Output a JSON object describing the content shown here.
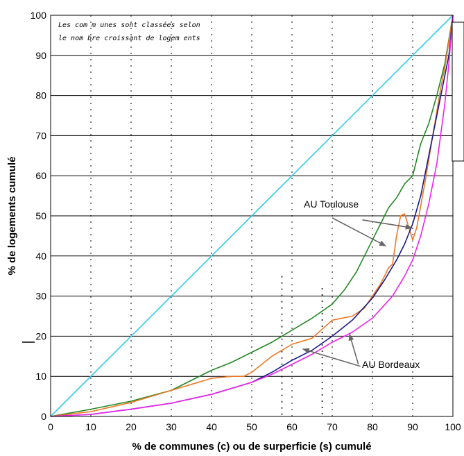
{
  "chart_data": {
    "type": "line",
    "title": "",
    "xlabel": "% de communes (c) ou de surperficie (s) cumulé",
    "ylabel": "% de logements cumulé",
    "xlim": [
      0,
      100
    ],
    "ylim": [
      0,
      100
    ],
    "x_ticks": [
      "0",
      "10",
      "20",
      "30",
      "40",
      "50",
      "60",
      "70",
      "80",
      "90",
      "100"
    ],
    "y_ticks": [
      "0",
      "10",
      "20",
      "30",
      "40",
      "50",
      "60",
      "70",
      "80",
      "90",
      "100"
    ],
    "grid": "horizontal solid, vertical dotted",
    "note_lines": [
      "Les com m unes sont classées selon",
      "le nom bre croissant de logem ents"
    ],
    "callouts": [
      {
        "text": "AU Toulouse"
      },
      {
        "text": "AU Bordeaux"
      }
    ],
    "series": [
      {
        "color": "#33ccee",
        "points": [
          [
            0,
            0
          ],
          [
            100,
            100
          ]
        ]
      },
      {
        "color": "#228822",
        "points": [
          [
            0,
            0
          ],
          [
            10,
            1.8
          ],
          [
            20,
            3.8
          ],
          [
            30,
            6.5
          ],
          [
            35,
            9
          ],
          [
            40,
            11.5
          ],
          [
            45,
            13.5
          ],
          [
            50,
            16
          ],
          [
            55,
            18.5
          ],
          [
            60,
            21.5
          ],
          [
            65,
            24.5
          ],
          [
            70,
            28
          ],
          [
            73,
            31.5
          ],
          [
            76,
            36
          ],
          [
            78,
            40
          ],
          [
            80,
            44
          ],
          [
            82,
            48
          ],
          [
            84,
            52
          ],
          [
            86,
            54.5
          ],
          [
            88,
            58
          ],
          [
            90,
            60
          ],
          [
            92,
            68
          ],
          [
            94,
            73
          ],
          [
            96,
            80
          ],
          [
            98,
            88
          ],
          [
            100,
            100
          ]
        ]
      },
      {
        "color": "#ee7722",
        "points": [
          [
            0,
            0
          ],
          [
            10,
            1.2
          ],
          [
            20,
            3.5
          ],
          [
            25,
            5
          ],
          [
            30,
            6.5
          ],
          [
            35,
            8
          ],
          [
            40,
            9.5
          ],
          [
            45,
            10
          ],
          [
            48,
            10
          ],
          [
            50,
            11
          ],
          [
            55,
            15
          ],
          [
            60,
            18
          ],
          [
            65,
            19.5
          ],
          [
            70,
            24
          ],
          [
            75,
            25
          ],
          [
            78,
            27
          ],
          [
            80,
            30
          ],
          [
            82,
            33
          ],
          [
            84,
            37
          ],
          [
            85,
            38
          ],
          [
            86,
            45
          ],
          [
            87,
            50
          ],
          [
            88,
            50.5
          ],
          [
            90,
            44
          ],
          [
            91,
            47
          ],
          [
            93,
            58
          ],
          [
            95,
            70
          ],
          [
            97,
            82
          ],
          [
            98,
            87
          ],
          [
            100,
            100
          ]
        ]
      },
      {
        "color": "#1a1a88",
        "points": [
          [
            0,
            0
          ],
          [
            10,
            0.5
          ],
          [
            20,
            1.8
          ],
          [
            30,
            3.3
          ],
          [
            40,
            5.5
          ],
          [
            50,
            8.5
          ],
          [
            55,
            11
          ],
          [
            60,
            14
          ],
          [
            65,
            16.5
          ],
          [
            70,
            20
          ],
          [
            75,
            24
          ],
          [
            80,
            29.5
          ],
          [
            83,
            34
          ],
          [
            86,
            39
          ],
          [
            88,
            43
          ],
          [
            90,
            48
          ],
          [
            92,
            55
          ],
          [
            94,
            65
          ],
          [
            96,
            75
          ],
          [
            98,
            85
          ],
          [
            99,
            90
          ],
          [
            100,
            100
          ]
        ]
      },
      {
        "color": "#ee22ee",
        "points": [
          [
            0,
            0
          ],
          [
            10,
            0.5
          ],
          [
            20,
            1.8
          ],
          [
            30,
            3.3
          ],
          [
            40,
            5.5
          ],
          [
            50,
            8.5
          ],
          [
            55,
            10.5
          ],
          [
            60,
            13
          ],
          [
            65,
            15.5
          ],
          [
            70,
            18.5
          ],
          [
            75,
            21
          ],
          [
            80,
            24.5
          ],
          [
            85,
            30
          ],
          [
            88,
            35
          ],
          [
            90,
            39
          ],
          [
            92,
            45
          ],
          [
            94,
            53
          ],
          [
            96,
            63
          ],
          [
            98,
            78
          ],
          [
            99,
            88
          ],
          [
            100,
            100
          ]
        ]
      }
    ]
  }
}
